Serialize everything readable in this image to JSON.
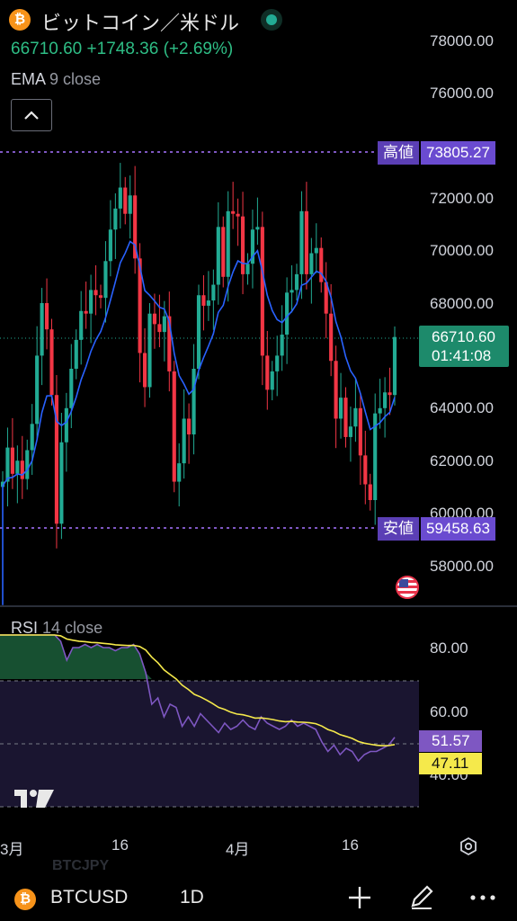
{
  "header": {
    "title": "ビットコイン／米ドル",
    "logo_icon": "bitcoin-icon",
    "status_icon": "market-open-dot-icon",
    "status_color": "#22ab94",
    "price": "66710.60",
    "change": "+1748.36",
    "change_percent": "(+2.69%)",
    "up_color": "#2ebd85"
  },
  "indicator": {
    "name": "EMA",
    "params": "9 close",
    "collapse_icon": "chevron-up-icon"
  },
  "price_axis": [
    "78000.00",
    "76000.00",
    "72000.00",
    "70000.00",
    "68000.00",
    "64000.00",
    "62000.00",
    "60000.00",
    "58000.00"
  ],
  "high_tag": {
    "label": "高値",
    "value": "73805.27"
  },
  "low_tag": {
    "label": "安値",
    "value": "59458.63"
  },
  "live_tag": {
    "price": "66710.60",
    "countdown": "01:41:08"
  },
  "rsi": {
    "name": "RSI",
    "params": "14 close",
    "axis": [
      "80.00",
      "60.00",
      "40.00"
    ],
    "value": "51.57",
    "ma_value": "47.11",
    "rsi_color": "#7e57c2",
    "ma_color": "#f5e94b"
  },
  "x_axis": [
    "3月",
    "16",
    "4月",
    "16"
  ],
  "ghost_text": "BTCJPY",
  "bottom_bar": {
    "symbol": "BTCUSD",
    "interval": "1D",
    "add_icon": "plus-icon",
    "draw_icon": "pen-icon",
    "more_icon": "more-dots-icon"
  },
  "colors": {
    "up": "#22ab94",
    "down": "#f23645",
    "ema": "#2962ff",
    "range": "#7e57c2"
  }
}
